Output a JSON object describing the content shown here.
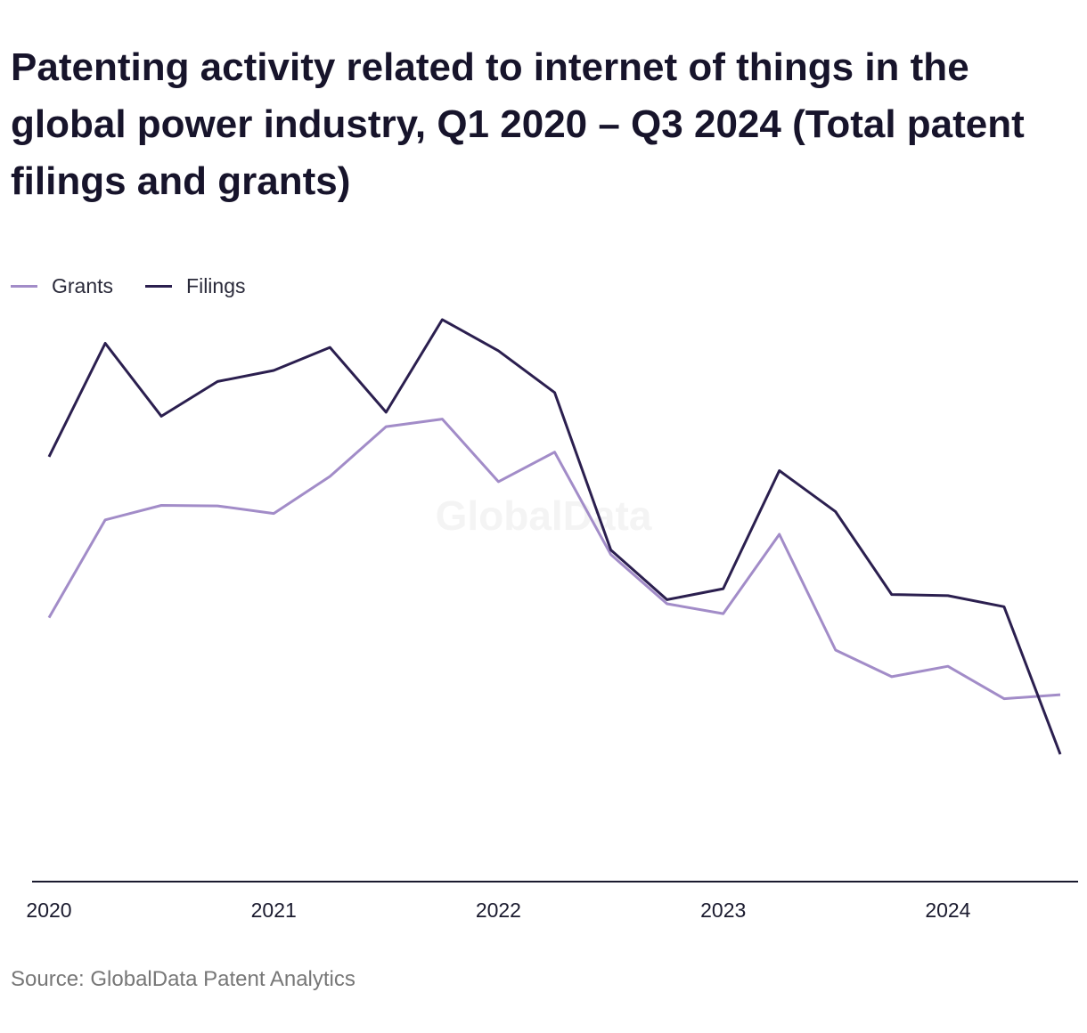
{
  "title": "Patenting activity related to internet of things in the global power industry, Q1 2020 – Q3 2024 (Total patent filings and grants)",
  "source": "Source: GlobalData Patent Analytics",
  "watermark": "GlobalData",
  "legend": {
    "placement": "top-left",
    "items": [
      {
        "label": "Grants",
        "color": "#a28cc8"
      },
      {
        "label": "Filings",
        "color": "#2b1f4f"
      }
    ]
  },
  "chart_data": {
    "type": "line",
    "title": "Patenting activity related to internet of things in the global power industry, Q1 2020 – Q3 2024 (Total patent filings and grants)",
    "xlabel": "",
    "ylabel": "",
    "x": [
      "Q1 2020",
      "Q2 2020",
      "Q3 2020",
      "Q4 2020",
      "Q1 2021",
      "Q2 2021",
      "Q3 2021",
      "Q4 2021",
      "Q1 2022",
      "Q2 2022",
      "Q3 2022",
      "Q4 2022",
      "Q1 2023",
      "Q2 2023",
      "Q3 2023",
      "Q4 2023",
      "Q1 2024",
      "Q2 2024",
      "Q3 2024"
    ],
    "x_tick_labels": [
      "2020",
      "2021",
      "2022",
      "2023",
      "2024"
    ],
    "x_tick_index": [
      0,
      4,
      8,
      12,
      16
    ],
    "y_axis_labels_shown": false,
    "ylim": [
      0,
      100
    ],
    "grid": false,
    "series": [
      {
        "name": "Grants",
        "color": "#a28cc8",
        "values": [
          45.6,
          62.5,
          65.0,
          64.9,
          63.6,
          70.0,
          78.6,
          79.9,
          69.1,
          74.2,
          56.5,
          48.0,
          46.3,
          60.0,
          40.0,
          35.4,
          37.2,
          31.6,
          32.3
        ]
      },
      {
        "name": "Filings",
        "color": "#2b1f4f",
        "values": [
          73.4,
          93.0,
          80.4,
          86.4,
          88.3,
          92.3,
          81.1,
          97.1,
          91.7,
          84.5,
          57.3,
          48.7,
          50.6,
          71.0,
          63.9,
          49.6,
          49.4,
          47.5,
          22.0
        ]
      }
    ]
  }
}
